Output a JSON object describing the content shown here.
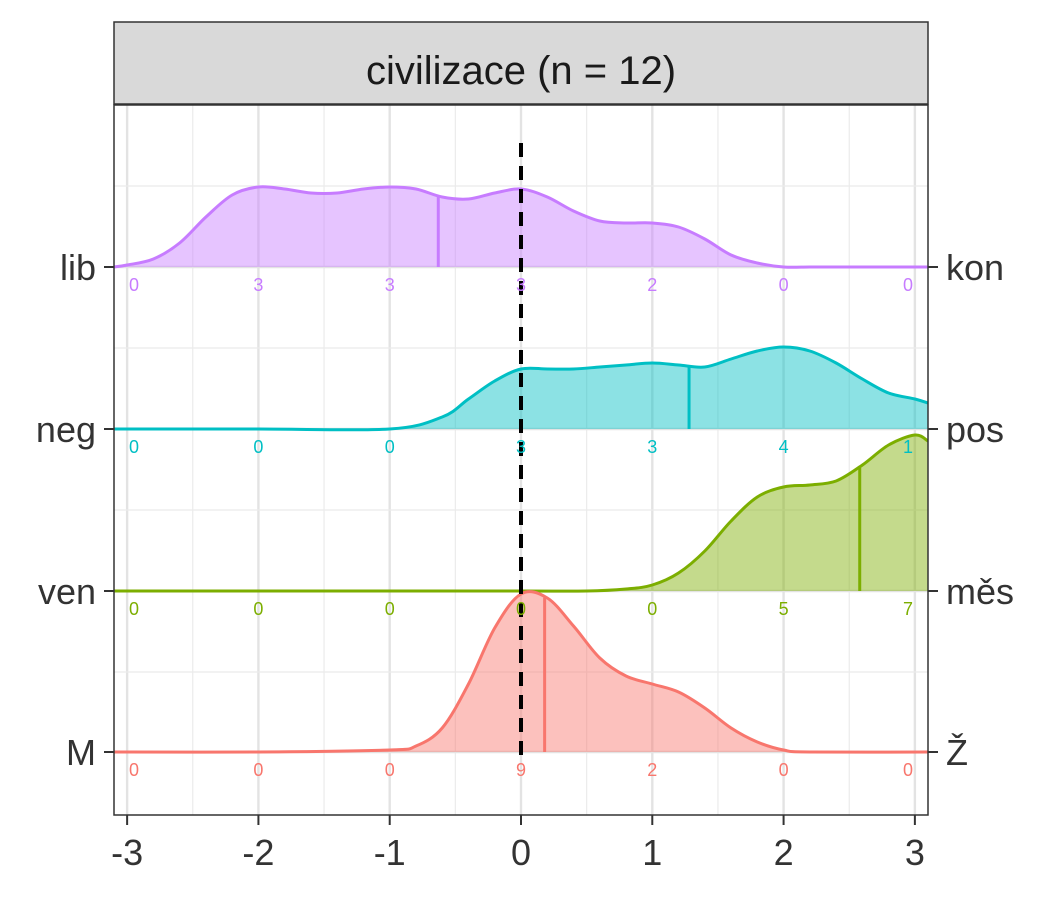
{
  "chart_data": {
    "type": "ridgeline-density",
    "title": "civilizace (n = 12)",
    "xlabel": "",
    "ylabel": "",
    "xlim": [
      -3.1,
      3.1
    ],
    "x_ticks": [
      -3,
      -2,
      -1,
      0,
      1,
      2,
      3
    ],
    "x_tick_labels": [
      "-3",
      "-2",
      "-1",
      "0",
      "1",
      "2",
      "3"
    ],
    "reference_line_x": 0,
    "grid": true,
    "bin_x": [
      -3,
      -2,
      -1,
      0,
      1,
      2,
      3
    ],
    "series": [
      {
        "left_label": "lib",
        "right_label": "kon",
        "color": "#C77CFF",
        "counts": [
          0,
          3,
          3,
          3,
          2,
          0,
          0
        ],
        "count_labels": [
          "0",
          "3",
          "3",
          "3",
          "2",
          "0",
          "0"
        ],
        "mean": -0.63,
        "density_x": [
          -3.1,
          -3.0,
          -2.8,
          -2.6,
          -2.4,
          -2.2,
          -2.0,
          -1.8,
          -1.6,
          -1.4,
          -1.2,
          -1.0,
          -0.8,
          -0.6,
          -0.4,
          -0.2,
          0.0,
          0.2,
          0.4,
          0.6,
          0.8,
          1.0,
          1.2,
          1.4,
          1.6,
          1.8,
          2.0,
          2.2,
          2.4,
          2.6,
          2.8,
          3.0,
          3.1
        ],
        "density_y": [
          0.0,
          0.01,
          0.04,
          0.12,
          0.25,
          0.36,
          0.4,
          0.39,
          0.37,
          0.37,
          0.39,
          0.4,
          0.39,
          0.35,
          0.34,
          0.37,
          0.39,
          0.35,
          0.28,
          0.23,
          0.22,
          0.22,
          0.2,
          0.14,
          0.06,
          0.02,
          0.0,
          0.0,
          0.0,
          0.0,
          0.0,
          0.0,
          0.0
        ]
      },
      {
        "left_label": "neg",
        "right_label": "pos",
        "color": "#00BFC4",
        "counts": [
          0,
          0,
          0,
          3,
          3,
          4,
          1
        ],
        "count_labels": [
          "0",
          "0",
          "0",
          "3",
          "3",
          "4",
          "1"
        ],
        "mean": 1.28,
        "density_x": [
          -3.1,
          -2.0,
          -1.0,
          -0.6,
          -0.4,
          -0.2,
          0.0,
          0.2,
          0.4,
          0.6,
          0.8,
          1.0,
          1.2,
          1.4,
          1.6,
          1.8,
          2.0,
          2.2,
          2.4,
          2.6,
          2.8,
          3.0,
          3.1
        ],
        "density_y": [
          0.0,
          0.0,
          0.0,
          0.06,
          0.15,
          0.24,
          0.3,
          0.3,
          0.3,
          0.31,
          0.32,
          0.33,
          0.32,
          0.31,
          0.35,
          0.39,
          0.41,
          0.39,
          0.33,
          0.25,
          0.18,
          0.15,
          0.13
        ]
      },
      {
        "left_label": "ven",
        "right_label": "měs",
        "color": "#7CAE00",
        "counts": [
          0,
          0,
          0,
          0,
          0,
          5,
          7
        ],
        "count_labels": [
          "0",
          "0",
          "0",
          "0",
          "0",
          "5",
          "7"
        ],
        "mean": 2.58,
        "density_x": [
          -3.1,
          -1.0,
          0.0,
          0.5,
          0.8,
          1.0,
          1.2,
          1.4,
          1.6,
          1.8,
          2.0,
          2.2,
          2.4,
          2.6,
          2.8,
          3.0,
          3.1
        ],
        "density_y": [
          0.0,
          0.0,
          0.0,
          0.0,
          0.01,
          0.03,
          0.09,
          0.2,
          0.35,
          0.47,
          0.52,
          0.53,
          0.55,
          0.63,
          0.73,
          0.78,
          0.75
        ]
      },
      {
        "left_label": "M",
        "right_label": "Ž",
        "color": "#F8766D",
        "counts": [
          0,
          0,
          0,
          9,
          2,
          0,
          0
        ],
        "count_labels": [
          "0",
          "0",
          "0",
          "9",
          "2",
          "0",
          "0"
        ],
        "mean": 0.18,
        "density_x": [
          -3.1,
          -2.0,
          -1.0,
          -0.8,
          -0.6,
          -0.4,
          -0.2,
          0.0,
          0.2,
          0.4,
          0.6,
          0.8,
          1.0,
          1.2,
          1.4,
          1.6,
          1.8,
          2.0,
          2.2,
          3.1
        ],
        "density_y": [
          0.0,
          0.0,
          0.01,
          0.03,
          0.12,
          0.34,
          0.62,
          0.79,
          0.77,
          0.63,
          0.47,
          0.38,
          0.34,
          0.3,
          0.22,
          0.12,
          0.05,
          0.01,
          0.0,
          0.0
        ]
      }
    ]
  }
}
